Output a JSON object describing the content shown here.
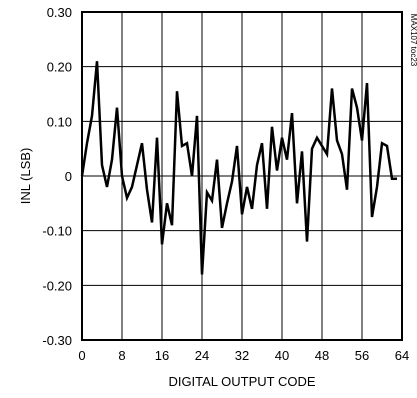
{
  "chart_data": {
    "type": "line",
    "xlabel": "DIGITAL OUTPUT CODE",
    "ylabel": "INL (LSB)",
    "xlim": [
      0,
      64
    ],
    "ylim": [
      -0.3,
      0.3
    ],
    "xticks": [
      0,
      8,
      16,
      24,
      32,
      40,
      48,
      56,
      64
    ],
    "xtick_labels": [
      "0",
      "8",
      "16",
      "24",
      "32",
      "40",
      "48",
      "56",
      "64"
    ],
    "yticks": [
      0.3,
      0.2,
      0.1,
      0,
      -0.1,
      -0.2,
      -0.3
    ],
    "ytick_labels": [
      "0.30",
      "0.20",
      "0.10",
      "0",
      "-0.10",
      "-0.20",
      "-0.30"
    ],
    "grid": true,
    "series": [
      {
        "color": "#000000",
        "x": [
          0,
          1,
          2,
          3,
          4,
          5,
          6,
          7,
          8,
          9,
          10,
          11,
          12,
          13,
          14,
          15,
          16,
          17,
          18,
          19,
          20,
          21,
          22,
          23,
          24,
          25,
          26,
          27,
          28,
          29,
          30,
          31,
          32,
          33,
          34,
          35,
          36,
          37,
          38,
          39,
          40,
          41,
          42,
          43,
          44,
          45,
          46,
          47,
          48,
          49,
          50,
          51,
          52,
          53,
          54,
          55,
          56,
          57,
          58,
          59,
          60,
          61,
          62,
          63
        ],
        "y": [
          0.0,
          0.06,
          0.11,
          0.21,
          0.02,
          -0.02,
          0.03,
          0.125,
          0.0,
          -0.04,
          -0.02,
          0.02,
          0.06,
          -0.025,
          -0.085,
          0.07,
          -0.125,
          -0.05,
          -0.09,
          0.155,
          0.055,
          0.06,
          0.0,
          0.11,
          -0.18,
          -0.03,
          -0.045,
          0.03,
          -0.095,
          -0.05,
          -0.01,
          0.055,
          -0.07,
          -0.02,
          -0.06,
          0.02,
          0.06,
          -0.06,
          0.09,
          0.01,
          0.07,
          0.03,
          0.115,
          -0.05,
          0.045,
          -0.12,
          0.05,
          0.07,
          0.055,
          0.04,
          0.16,
          0.065,
          0.04,
          -0.025,
          0.16,
          0.125,
          0.065,
          0.17,
          -0.075,
          -0.02,
          0.06,
          0.055,
          -0.005,
          -0.005
        ]
      }
    ]
  },
  "side_note": "MAX107 toc23",
  "colors": {
    "line": "#000000",
    "grid": "#000000",
    "background": "#ffffff"
  }
}
